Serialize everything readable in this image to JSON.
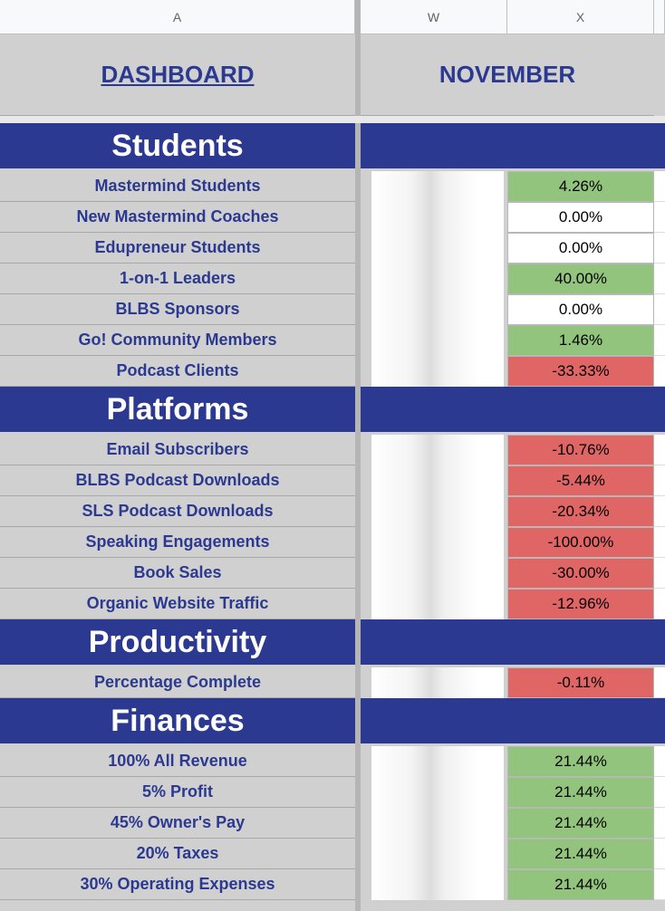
{
  "column_headers": [
    "A",
    "W",
    "X"
  ],
  "header": {
    "title": "DASHBOARD",
    "month": "NOVEMBER"
  },
  "sections": [
    {
      "name": "Students",
      "rows": [
        {
          "label": "Mastermind Students",
          "value": "4.26%",
          "color": "#93c47d"
        },
        {
          "label": "New Mastermind Coaches",
          "value": "0.00%",
          "color": "#ffffff"
        },
        {
          "label": "Edupreneur Students",
          "value": "0.00%",
          "color": "#ffffff"
        },
        {
          "label": "1-on-1 Leaders",
          "value": "40.00%",
          "color": "#93c47d"
        },
        {
          "label": "BLBS Sponsors",
          "value": "0.00%",
          "color": "#ffffff"
        },
        {
          "label": "Go! Community Members",
          "value": "1.46%",
          "color": "#93c47d"
        },
        {
          "label": "Podcast Clients",
          "value": "-33.33%",
          "color": "#e06666"
        }
      ]
    },
    {
      "name": "Platforms",
      "rows": [
        {
          "label": "Email Subscribers",
          "value": "-10.76%",
          "color": "#e06666"
        },
        {
          "label": "BLBS Podcast Downloads",
          "value": "-5.44%",
          "color": "#e06666"
        },
        {
          "label": "SLS Podcast Downloads",
          "value": "-20.34%",
          "color": "#e06666"
        },
        {
          "label": "Speaking Engagements",
          "value": "-100.00%",
          "color": "#e06666"
        },
        {
          "label": "Book Sales",
          "value": "-30.00%",
          "color": "#e06666"
        },
        {
          "label": "Organic Website Traffic",
          "value": "-12.96%",
          "color": "#e06666"
        }
      ]
    },
    {
      "name": "Productivity",
      "rows": [
        {
          "label": "Percentage Complete",
          "value": "-0.11%",
          "color": "#e06666"
        }
      ]
    },
    {
      "name": "Finances",
      "rows": [
        {
          "label": "100% All Revenue",
          "value": "21.44%",
          "color": "#93c47d"
        },
        {
          "label": "5% Profit",
          "value": "21.44%",
          "color": "#93c47d"
        },
        {
          "label": "45% Owner's Pay",
          "value": "21.44%",
          "color": "#93c47d"
        },
        {
          "label": "20% Taxes",
          "value": "21.44%",
          "color": "#93c47d"
        },
        {
          "label": "30% Operating Expenses",
          "value": "21.44%",
          "color": "#93c47d"
        }
      ]
    }
  ]
}
